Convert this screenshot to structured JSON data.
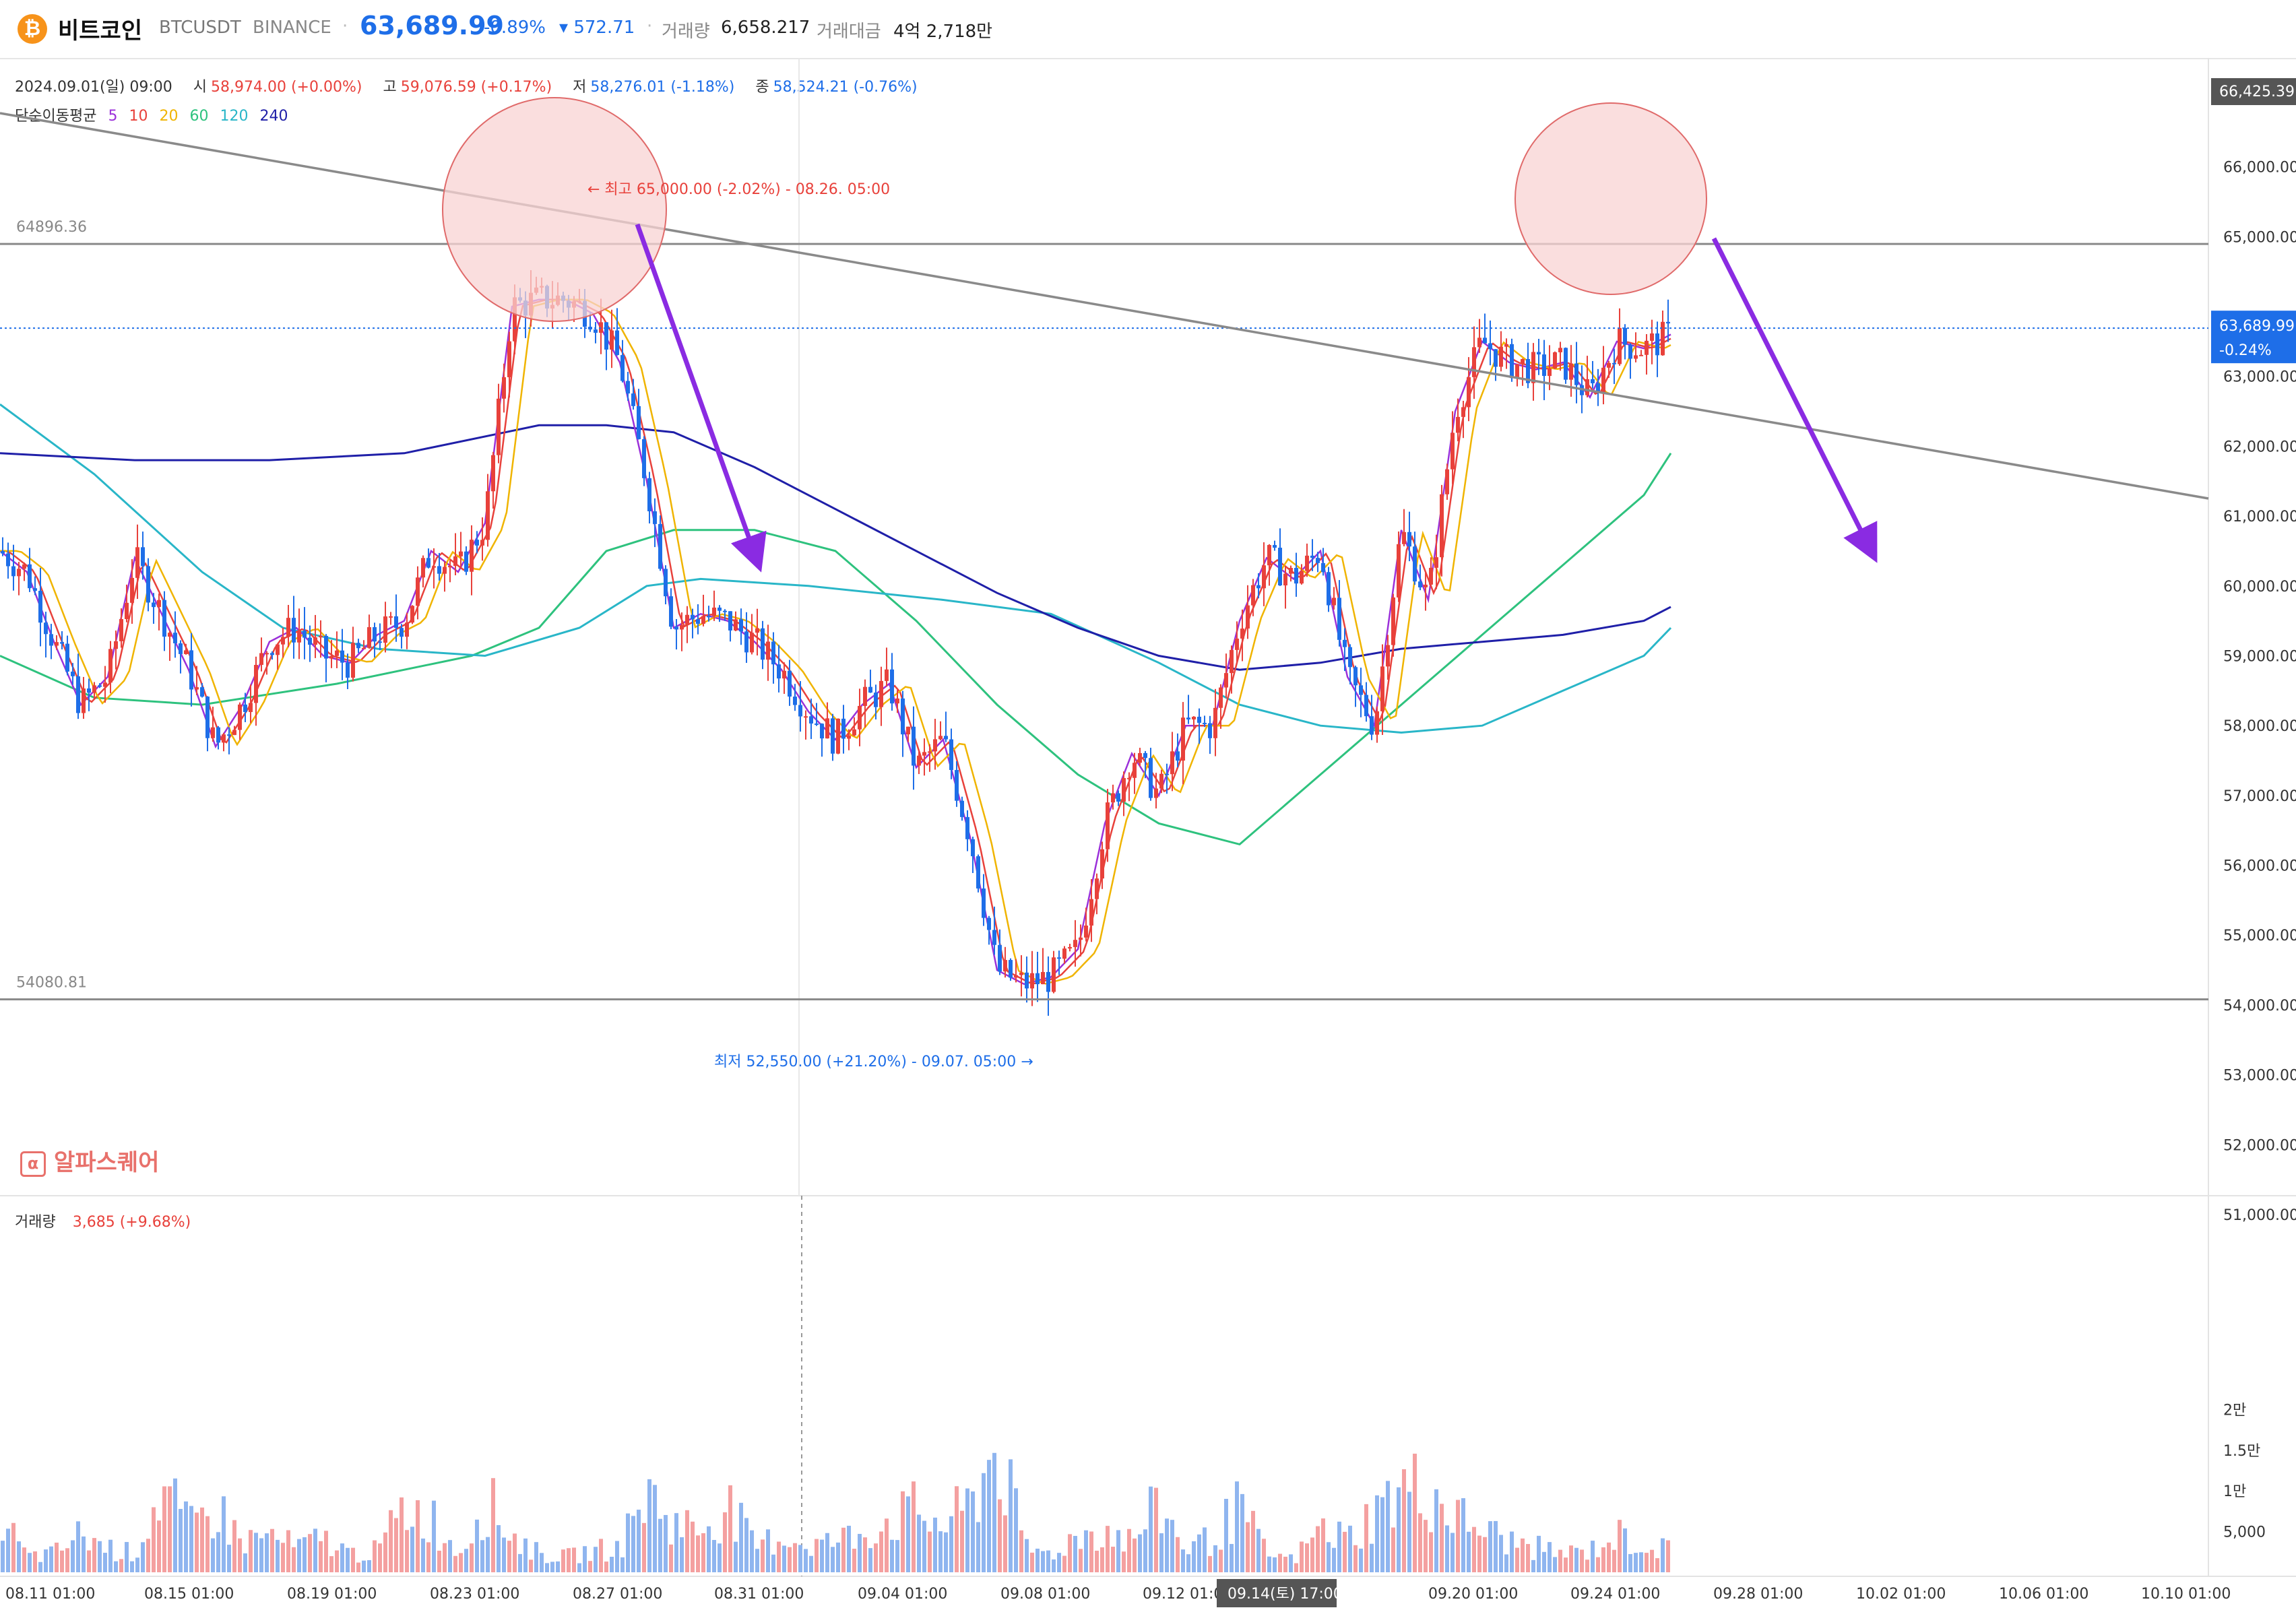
{
  "header": {
    "coin_icon": "bitcoin-icon",
    "name": "비트코인",
    "symbol": "BTCUSDT",
    "exchange": "BINANCE",
    "price": "63,689.99",
    "change_pct": "-0.89%",
    "change_abs": "▾ 572.71",
    "volume_label": "거래량",
    "volume_value": "6,658.217",
    "amount_label": "거래대금",
    "amount_value": "4억 2,718만"
  },
  "ohlc": {
    "date": "2024.09.01(일) 09:00",
    "open_label": "시",
    "open": "58,974.00 (+0.00%)",
    "high_label": "고",
    "high": "59,076.59 (+0.17%)",
    "low_label": "저",
    "low": "58,276.01 (-1.18%)",
    "close_label": "종",
    "close": "58,524.21 (-0.76%)"
  },
  "ma_legend": {
    "label": "단순이동평균",
    "periods": [
      "5",
      "10",
      "20",
      "60",
      "120",
      "240"
    ],
    "colors": [
      "#9b30d9",
      "#e8413b",
      "#f0b400",
      "#2ec27e",
      "#29b6c8",
      "#1f1fa8"
    ]
  },
  "volume_legend": {
    "label": "거래량",
    "value": "3,685 (+9.68%)"
  },
  "watermark": "알파스퀘어",
  "colors": {
    "up": "#e8413b",
    "down": "#1e6ee8",
    "vol_up": "#f4a0a0",
    "vol_down": "#8fb5ef",
    "arrow": "#8a2be2",
    "circle_fill": "#f8d3d3",
    "circle_stroke": "#e06a6a"
  },
  "chart_data": {
    "type": "candlestick",
    "price_axis": {
      "min": 51000,
      "max": 66000,
      "ticks": [
        "66,000.00",
        "65,000.00",
        "63,000.00",
        "62,000.00",
        "61,000.00",
        "60,000.00",
        "59,000.00",
        "58,000.00",
        "57,000.00",
        "56,000.00",
        "55,000.00",
        "54,000.00",
        "53,000.00",
        "52,000.00",
        "51,000.00"
      ],
      "tick_values": [
        66000,
        65000,
        63000,
        62000,
        61000,
        60000,
        59000,
        58000,
        57000,
        56000,
        55000,
        54000,
        53000,
        52000,
        51000
      ]
    },
    "volume_axis": {
      "ticks": [
        "2만",
        "1.5만",
        "1만",
        "5,000"
      ],
      "tick_values": [
        20000,
        15000,
        10000,
        5000
      ]
    },
    "time_axis": {
      "labels": [
        "08.11 01:00",
        "08.15 01:00",
        "08.19 01:00",
        "08.23 01:00",
        "08.27 01:00",
        "08.31 01:00",
        "09.04 01:00",
        "09.08 01:00",
        "09.12 01:00",
        "09.20 01:00",
        "09.24 01:00",
        "09.28 01:00",
        "10.02 01:00",
        "10.06 01:00",
        "10.10 01:00"
      ],
      "crosshair_label": "09.14(토) 17:00"
    },
    "price_tags": {
      "top": "66,425.39",
      "current": "63,689.99",
      "current_pct": "-0.24%"
    },
    "horizontal_lines": [
      {
        "value": 64896.36,
        "label": "64896.36"
      },
      {
        "value": 54080.81,
        "label": "54080.81"
      }
    ],
    "annotations": {
      "high": "← 최고 65,000.00 (-2.02%) - 08.26. 05:00",
      "low": "최저 52,550.00 (+21.20%) - 09.07. 05:00 →"
    },
    "price_path": [
      [
        0,
        60500
      ],
      [
        40,
        60200
      ],
      [
        80,
        59200
      ],
      [
        120,
        58300
      ],
      [
        160,
        58700
      ],
      [
        200,
        60400
      ],
      [
        240,
        59600
      ],
      [
        280,
        58800
      ],
      [
        320,
        57700
      ],
      [
        360,
        58300
      ],
      [
        400,
        59200
      ],
      [
        440,
        59400
      ],
      [
        480,
        59000
      ],
      [
        520,
        58900
      ],
      [
        560,
        59300
      ],
      [
        600,
        59500
      ],
      [
        640,
        60500
      ],
      [
        680,
        60200
      ],
      [
        720,
        60900
      ],
      [
        760,
        64000
      ],
      [
        800,
        64100
      ],
      [
        840,
        64100
      ],
      [
        880,
        63900
      ],
      [
        920,
        63200
      ],
      [
        960,
        61500
      ],
      [
        1000,
        59400
      ],
      [
        1040,
        59600
      ],
      [
        1080,
        59500
      ],
      [
        1120,
        59200
      ],
      [
        1160,
        58800
      ],
      [
        1200,
        58200
      ],
      [
        1240,
        57800
      ],
      [
        1280,
        58300
      ],
      [
        1320,
        58600
      ],
      [
        1360,
        57400
      ],
      [
        1400,
        57800
      ],
      [
        1440,
        56400
      ],
      [
        1480,
        54500
      ],
      [
        1520,
        54300
      ],
      [
        1560,
        54400
      ],
      [
        1600,
        54800
      ],
      [
        1640,
        56600
      ],
      [
        1680,
        57600
      ],
      [
        1720,
        57000
      ],
      [
        1760,
        58000
      ],
      [
        1800,
        58000
      ],
      [
        1840,
        59500
      ],
      [
        1880,
        60400
      ],
      [
        1920,
        60100
      ],
      [
        1960,
        60500
      ],
      [
        2000,
        58700
      ],
      [
        2040,
        58000
      ],
      [
        2080,
        60800
      ],
      [
        2120,
        59800
      ],
      [
        2160,
        62500
      ],
      [
        2200,
        63500
      ],
      [
        2240,
        63200
      ],
      [
        2280,
        63100
      ],
      [
        2320,
        63200
      ],
      [
        2360,
        62700
      ],
      [
        2400,
        63500
      ],
      [
        2440,
        63400
      ],
      [
        2480,
        63600
      ]
    ],
    "volume_path": [
      [
        0,
        9000
      ],
      [
        40,
        2500
      ],
      [
        80,
        3000
      ],
      [
        120,
        6200
      ],
      [
        160,
        4000
      ],
      [
        200,
        3000
      ],
      [
        240,
        13500
      ],
      [
        280,
        7000
      ],
      [
        320,
        10500
      ],
      [
        360,
        5000
      ],
      [
        400,
        6000
      ],
      [
        440,
        4000
      ],
      [
        480,
        5500
      ],
      [
        520,
        3000
      ],
      [
        560,
        3500
      ],
      [
        600,
        10500
      ],
      [
        640,
        9000
      ],
      [
        680,
        3000
      ],
      [
        720,
        12000
      ],
      [
        760,
        6000
      ],
      [
        800,
        3000
      ],
      [
        840,
        2500
      ],
      [
        880,
        3500
      ],
      [
        920,
        4000
      ],
      [
        960,
        13000
      ],
      [
        1000,
        8000
      ],
      [
        1040,
        7000
      ],
      [
        1080,
        11000
      ],
      [
        1120,
        4000
      ],
      [
        1160,
        6000
      ],
      [
        1200,
        4500
      ],
      [
        1240,
        5000
      ],
      [
        1280,
        6500
      ],
      [
        1320,
        8500
      ],
      [
        1360,
        10000
      ],
      [
        1400,
        7500
      ],
      [
        1440,
        11000
      ],
      [
        1480,
        20800
      ],
      [
        1520,
        4000
      ],
      [
        1560,
        3000
      ],
      [
        1600,
        6000
      ],
      [
        1640,
        7000
      ],
      [
        1680,
        5000
      ],
      [
        1720,
        11000
      ],
      [
        1760,
        4000
      ],
      [
        1800,
        5500
      ],
      [
        1840,
        10500
      ],
      [
        1880,
        3000
      ],
      [
        1920,
        2000
      ],
      [
        1960,
        7000
      ],
      [
        2000,
        5500
      ],
      [
        2040,
        9500
      ],
      [
        2080,
        13500
      ],
      [
        2120,
        13500
      ],
      [
        2160,
        9000
      ],
      [
        2200,
        7000
      ],
      [
        2240,
        5000
      ],
      [
        2280,
        4000
      ],
      [
        2320,
        3000
      ],
      [
        2360,
        3500
      ],
      [
        2400,
        6000
      ],
      [
        2440,
        4500
      ],
      [
        2480,
        3500
      ]
    ],
    "ma_lines": [
      {
        "period": "60",
        "points": [
          [
            0,
            59000
          ],
          [
            140,
            58400
          ],
          [
            300,
            58300
          ],
          [
            500,
            58600
          ],
          [
            700,
            59000
          ],
          [
            800,
            59400
          ],
          [
            900,
            60500
          ],
          [
            1000,
            60800
          ],
          [
            1120,
            60800
          ],
          [
            1240,
            60500
          ],
          [
            1360,
            59500
          ],
          [
            1480,
            58300
          ],
          [
            1600,
            57300
          ],
          [
            1720,
            56600
          ],
          [
            1840,
            56300
          ],
          [
            1960,
            57300
          ],
          [
            2080,
            58300
          ],
          [
            2200,
            59300
          ],
          [
            2320,
            60300
          ],
          [
            2440,
            61300
          ],
          [
            2480,
            61900
          ]
        ]
      },
      {
        "period": "120",
        "points": [
          [
            0,
            62600
          ],
          [
            140,
            61600
          ],
          [
            300,
            60200
          ],
          [
            420,
            59400
          ],
          [
            560,
            59100
          ],
          [
            720,
            59000
          ],
          [
            860,
            59400
          ],
          [
            960,
            60000
          ],
          [
            1040,
            60100
          ],
          [
            1200,
            60000
          ],
          [
            1400,
            59800
          ],
          [
            1560,
            59600
          ],
          [
            1720,
            58900
          ],
          [
            1840,
            58300
          ],
          [
            1960,
            58000
          ],
          [
            2080,
            57900
          ],
          [
            2200,
            58000
          ],
          [
            2320,
            58500
          ],
          [
            2440,
            59000
          ],
          [
            2480,
            59400
          ]
        ]
      },
      {
        "period": "240",
        "points": [
          [
            0,
            61900
          ],
          [
            200,
            61800
          ],
          [
            400,
            61800
          ],
          [
            600,
            61900
          ],
          [
            800,
            62300
          ],
          [
            900,
            62300
          ],
          [
            1000,
            62200
          ],
          [
            1120,
            61700
          ],
          [
            1240,
            61100
          ],
          [
            1360,
            60500
          ],
          [
            1480,
            59900
          ],
          [
            1600,
            59400
          ],
          [
            1720,
            59000
          ],
          [
            1840,
            58800
          ],
          [
            1960,
            58900
          ],
          [
            2080,
            59100
          ],
          [
            2200,
            59200
          ],
          [
            2320,
            59300
          ],
          [
            2440,
            59500
          ],
          [
            2480,
            59700
          ]
        ]
      }
    ]
  }
}
